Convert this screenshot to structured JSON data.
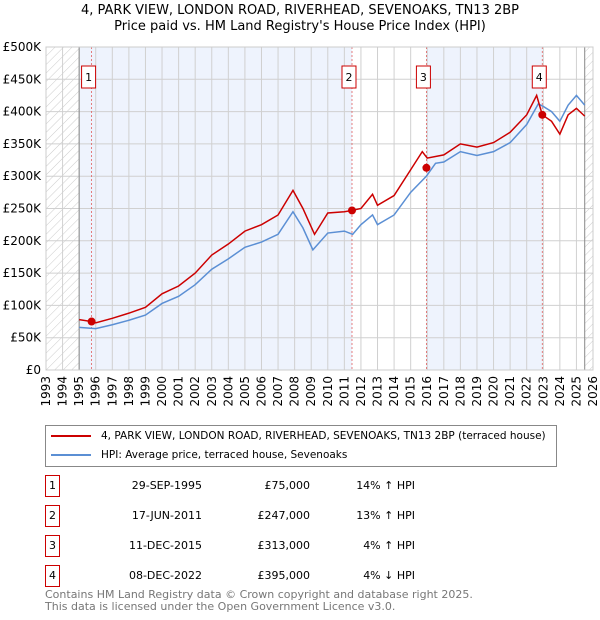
{
  "title_line1": "4, PARK VIEW, LONDON ROAD, RIVERHEAD, SEVENOAKS, TN13 2BP",
  "title_line2": "Price paid vs. HM Land Registry's House Price Index (HPI)",
  "colors": {
    "property": "#cc0000",
    "hpi": "#5b8fd4",
    "shade": "#eef3fd"
  },
  "chart_data": {
    "type": "line",
    "title": "Price paid vs. HM Land Registry's House Price Index (HPI)",
    "xlim": [
      1993,
      2026
    ],
    "ylim": [
      0,
      500000
    ],
    "x_ticks": [
      "1993",
      "1994",
      "1995",
      "1996",
      "1997",
      "1998",
      "1999",
      "2000",
      "2001",
      "2002",
      "2003",
      "2004",
      "2005",
      "2006",
      "2007",
      "2008",
      "2009",
      "2010",
      "2011",
      "2012",
      "2013",
      "2014",
      "2015",
      "2016",
      "2017",
      "2018",
      "2019",
      "2020",
      "2021",
      "2022",
      "2023",
      "2024",
      "2025",
      "2026"
    ],
    "y_ticks": [
      {
        "v": 0,
        "label": "£0"
      },
      {
        "v": 50000,
        "label": "£50K"
      },
      {
        "v": 100000,
        "label": "£100K"
      },
      {
        "v": 150000,
        "label": "£150K"
      },
      {
        "v": 200000,
        "label": "£200K"
      },
      {
        "v": 250000,
        "label": "£250K"
      },
      {
        "v": 300000,
        "label": "£300K"
      },
      {
        "v": 350000,
        "label": "£350K"
      },
      {
        "v": 400000,
        "label": "£400K"
      },
      {
        "v": 450000,
        "label": "£450K"
      },
      {
        "v": 500000,
        "label": "£500K"
      }
    ],
    "series": [
      {
        "name": "4, PARK VIEW, LONDON ROAD, RIVERHEAD, SEVENOAKS, TN13 2BP (terraced house)",
        "x": [
          1995,
          1995.75,
          1996,
          1997,
          1998,
          1999,
          2000,
          2001,
          2002,
          2003,
          2004,
          2005,
          2006,
          2007,
          2007.9,
          2008.5,
          2009.2,
          2010,
          2011,
          2011.46,
          2012,
          2012.7,
          2013,
          2014,
          2015,
          2015.7,
          2016,
          2017,
          2018,
          2019,
          2020,
          2021,
          2022,
          2022.6,
          2022.94,
          2023.5,
          2024,
          2024.5,
          2025,
          2025.5
        ],
        "y": [
          78000,
          75000,
          73000,
          80000,
          88000,
          97000,
          118000,
          130000,
          150000,
          178000,
          195000,
          215000,
          225000,
          240000,
          278000,
          250000,
          210000,
          243000,
          245000,
          247000,
          250000,
          272000,
          255000,
          270000,
          310000,
          338000,
          328000,
          333000,
          350000,
          345000,
          352000,
          368000,
          395000,
          425000,
          395000,
          385000,
          365000,
          395000,
          405000,
          393000
        ]
      },
      {
        "name": "HPI: Average price, terraced house, Sevenoaks",
        "x": [
          1995,
          1996,
          1997,
          1998,
          1999,
          2000,
          2001,
          2002,
          2003,
          2004,
          2005,
          2006,
          2007,
          2007.9,
          2008.5,
          2009.1,
          2010,
          2011,
          2011.5,
          2012,
          2012.7,
          2013,
          2014,
          2015,
          2015.95,
          2016.5,
          2017,
          2018,
          2019,
          2020,
          2021,
          2022,
          2022.7,
          2023,
          2023.5,
          2024,
          2024.5,
          2025,
          2025.5
        ],
        "y": [
          66000,
          64000,
          70000,
          77000,
          85000,
          103000,
          114000,
          132000,
          156000,
          172000,
          190000,
          198000,
          210000,
          245000,
          220000,
          186000,
          212000,
          215000,
          210000,
          225000,
          240000,
          225000,
          240000,
          275000,
          300000,
          320000,
          322000,
          338000,
          332000,
          338000,
          352000,
          380000,
          412000,
          408000,
          400000,
          385000,
          410000,
          425000,
          410000
        ]
      }
    ],
    "sales": [
      {
        "n": "1",
        "x": 1995.75,
        "y": 75000
      },
      {
        "n": "2",
        "x": 2011.46,
        "y": 247000
      },
      {
        "n": "3",
        "x": 2015.95,
        "y": 313000
      },
      {
        "n": "4",
        "x": 2022.94,
        "y": 395000
      }
    ],
    "data_end": 2025.5
  },
  "legend": {
    "property": "4, PARK VIEW, LONDON ROAD, RIVERHEAD, SEVENOAKS, TN13 2BP (terraced house)",
    "hpi": "HPI: Average price, terraced house, Sevenoaks"
  },
  "transactions": [
    {
      "n": "1",
      "date": "29-SEP-1995",
      "price": "£75,000",
      "delta": "14% ↑ HPI"
    },
    {
      "n": "2",
      "date": "17-JUN-2011",
      "price": "£247,000",
      "delta": "13% ↑ HPI"
    },
    {
      "n": "3",
      "date": "11-DEC-2015",
      "price": "£313,000",
      "delta": "4% ↑ HPI"
    },
    {
      "n": "4",
      "date": "08-DEC-2022",
      "price": "£395,000",
      "delta": "4% ↓ HPI"
    }
  ],
  "footer": {
    "line1": "Contains HM Land Registry data © Crown copyright and database right 2025.",
    "line2": "This data is licensed under the Open Government Licence v3.0."
  }
}
